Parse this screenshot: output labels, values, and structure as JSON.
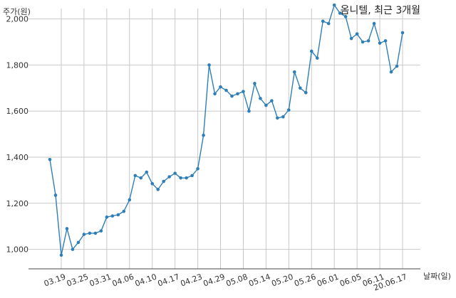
{
  "chart_data": {
    "type": "line",
    "title": "옴니텔, 최근 3개월",
    "ylabel": "주가(원)",
    "xlabel": "날짜(일)",
    "ylim": [
      900,
      2100
    ],
    "yticks": [
      1000,
      1200,
      1400,
      1600,
      1800,
      2000
    ],
    "ytick_labels": [
      "1,000",
      "1,200",
      "1,400",
      "1,600",
      "1,800",
      "2,000"
    ],
    "xtick_labels": [
      "03.19",
      "03.25",
      "03.31",
      "04.06",
      "04.10",
      "04.17",
      "04.23",
      "04.29",
      "05.08",
      "05.14",
      "05.20",
      "05.26",
      "06.01",
      "06.05",
      "06.11",
      "20.06.17"
    ],
    "xtick_index": [
      2,
      6,
      10,
      14,
      18,
      22,
      26,
      30,
      34,
      38,
      42,
      46,
      50,
      54,
      58,
      62
    ],
    "grid": true,
    "series": [
      {
        "color": "#2e7fb8",
        "values": [
          1390,
          1235,
          975,
          1090,
          1000,
          1030,
          1065,
          1070,
          1070,
          1080,
          1140,
          1145,
          1150,
          1165,
          1215,
          1320,
          1310,
          1335,
          1285,
          1260,
          1295,
          1315,
          1330,
          1310,
          1310,
          1320,
          1350,
          1495,
          1800,
          1675,
          1705,
          1690,
          1665,
          1675,
          1685,
          1600,
          1720,
          1655,
          1625,
          1645,
          1570,
          1575,
          1605,
          1770,
          1700,
          1680,
          1860,
          1830,
          1990,
          1980,
          2060,
          2025,
          2010,
          1915,
          1935,
          1900,
          1905,
          1980,
          1895,
          1905,
          1770,
          1795,
          1940
        ]
      }
    ]
  }
}
